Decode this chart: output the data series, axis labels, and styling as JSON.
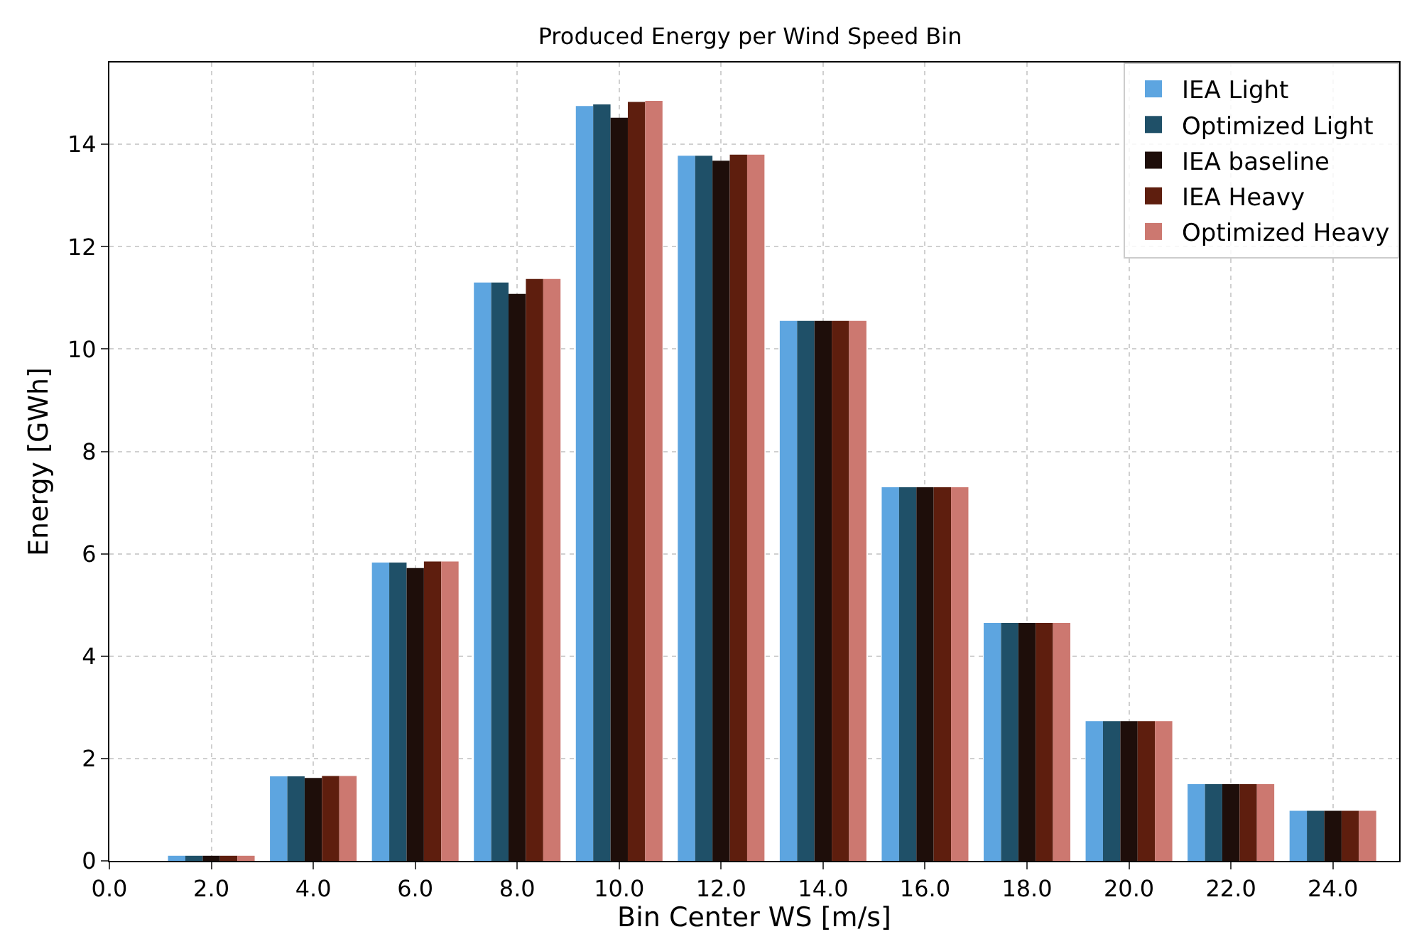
{
  "chart_data": {
    "type": "bar",
    "title": "Produced Energy per Wind Speed Bin",
    "xlabel": "Bin Center WS [m/s]",
    "ylabel": "Energy [GWh]",
    "x": [
      2,
      4,
      6,
      8,
      10,
      12,
      14,
      16,
      18,
      20,
      22,
      24
    ],
    "series": [
      {
        "name": "IEA Light",
        "color": "#5da5e0",
        "values": [
          0.1,
          1.65,
          5.83,
          11.3,
          14.75,
          13.78,
          10.55,
          7.3,
          4.65,
          2.73,
          1.5,
          0.98
        ]
      },
      {
        "name": "Optimized Light",
        "color": "#1f5068",
        "values": [
          0.1,
          1.65,
          5.83,
          11.3,
          14.78,
          13.78,
          10.55,
          7.3,
          4.65,
          2.73,
          1.5,
          0.98
        ]
      },
      {
        "name": "IEA baseline",
        "color": "#1e0e0a",
        "values": [
          0.1,
          1.62,
          5.72,
          11.08,
          14.52,
          13.68,
          10.55,
          7.3,
          4.65,
          2.73,
          1.5,
          0.98
        ]
      },
      {
        "name": "IEA Heavy",
        "color": "#5e1e0e",
        "values": [
          0.1,
          1.66,
          5.85,
          11.37,
          14.83,
          13.8,
          10.55,
          7.3,
          4.65,
          2.73,
          1.5,
          0.98
        ]
      },
      {
        "name": "Optimized Heavy",
        "color": "#cc7870",
        "values": [
          0.1,
          1.66,
          5.85,
          11.37,
          14.85,
          13.8,
          10.55,
          7.3,
          4.65,
          2.73,
          1.5,
          0.98
        ]
      }
    ],
    "xlim": [
      0,
      25.3
    ],
    "xticks": [
      {
        "value": 0,
        "label": "0.0"
      },
      {
        "value": 2,
        "label": "2.0"
      },
      {
        "value": 4,
        "label": "4.0"
      },
      {
        "value": 6,
        "label": "6.0"
      },
      {
        "value": 8,
        "label": "8.0"
      },
      {
        "value": 10,
        "label": "10.0"
      },
      {
        "value": 12,
        "label": "12.0"
      },
      {
        "value": 14,
        "label": "14.0"
      },
      {
        "value": 16,
        "label": "16.0"
      },
      {
        "value": 18,
        "label": "18.0"
      },
      {
        "value": 20,
        "label": "20.0"
      },
      {
        "value": 22,
        "label": "22.0"
      },
      {
        "value": 24,
        "label": "24.0"
      }
    ],
    "ylim": [
      0,
      15.6
    ],
    "yticks": [
      0,
      2,
      4,
      6,
      8,
      10,
      12,
      14
    ],
    "grid": true,
    "legend": "top right"
  }
}
